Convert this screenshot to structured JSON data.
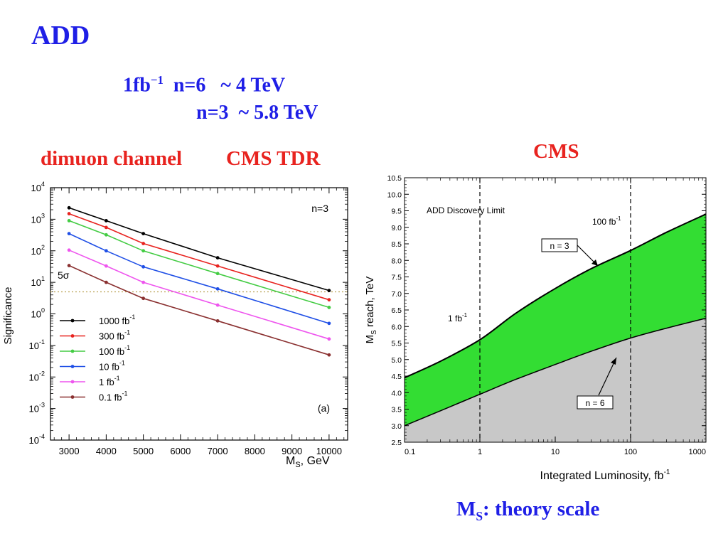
{
  "slide": {
    "title": "ADD",
    "summary_line1_a": "1fb",
    "summary_line1_sup": "−1",
    "summary_line1_b": "n=6   ~ 4 TeV",
    "summary_line2": "n=3  ~ 5.8 TeV",
    "left_caption_a": "dimuon channel",
    "left_caption_b": "CMS TDR",
    "right_caption": "CMS",
    "footer_a": "M",
    "footer_sub": "S",
    "footer_b": ": theory scale"
  },
  "colors": {
    "title_blue": "#1f1fe6",
    "caption_red": "#e8231f",
    "band_green": "#33dd33",
    "band_gray": "#c8c8c8"
  },
  "chart_data": [
    {
      "type": "line",
      "ylabel": "Significance",
      "xlabel_a": "M",
      "xlabel_sub": "S",
      "xlabel_b": ", GeV",
      "xlim": [
        2500,
        10500
      ],
      "ylim": [
        0.0001,
        10000
      ],
      "yscale": "log",
      "xticks": [
        3000,
        4000,
        5000,
        6000,
        7000,
        8000,
        9000,
        10000
      ],
      "yticks": [
        {
          "v": 0.0001,
          "m": "10",
          "e": "-4"
        },
        {
          "v": 0.001,
          "m": "10",
          "e": "-3"
        },
        {
          "v": 0.01,
          "m": "10",
          "e": "-2"
        },
        {
          "v": 0.1,
          "m": "10",
          "e": "-1"
        },
        {
          "v": 1,
          "m": "10",
          "e": "0"
        },
        {
          "v": 10,
          "m": "10",
          "e": "1"
        },
        {
          "v": 100,
          "m": "10",
          "e": "2"
        },
        {
          "v": 1000,
          "m": "10",
          "e": "3"
        },
        {
          "v": 10000,
          "m": "10",
          "e": "4"
        }
      ],
      "annotation_n": "n=3",
      "annotation_5sigma": "5σ",
      "threshold": 5,
      "panel_label": "(a)",
      "x": [
        3000,
        4000,
        5000,
        7000,
        10000
      ],
      "series": [
        {
          "name": "1000  fb",
          "sup": "-1",
          "color": "#000000",
          "values": [
            2300,
            900,
            350,
            60,
            5.5
          ]
        },
        {
          "name": "300  fb",
          "sup": "-1",
          "color": "#e8231f",
          "values": [
            1500,
            550,
            170,
            33,
            2.8
          ]
        },
        {
          "name": "100   fb",
          "sup": "-1",
          "color": "#44cc44",
          "values": [
            900,
            320,
            100,
            19,
            1.6
          ]
        },
        {
          "name": "10  fb",
          "sup": "-1",
          "color": "#1f4fe6",
          "values": [
            350,
            100,
            31,
            6.2,
            0.5
          ]
        },
        {
          "name": "1   fb",
          "sup": "-1",
          "color": "#ee55ee",
          "values": [
            105,
            33,
            10,
            1.9,
            0.16
          ]
        },
        {
          "name": "0.1 fb",
          "sup": "-1",
          "color": "#8a3030",
          "values": [
            34,
            10,
            3.1,
            0.6,
            0.05
          ]
        }
      ]
    },
    {
      "type": "area",
      "title": "ADD Discovery Limit",
      "ylabel_a": "M",
      "ylabel_sub": "S",
      "ylabel_b": " reach, TeV",
      "xlabel_a": "Integrated Luminosity, fb",
      "xlabel_sup": "-1",
      "xscale": "log",
      "xlim": [
        0.1,
        1000
      ],
      "ylim": [
        2.5,
        10.5
      ],
      "xticks": [
        {
          "v": 0.1,
          "label": "0.1"
        },
        {
          "v": 1,
          "label": "1"
        },
        {
          "v": 10,
          "label": "10"
        },
        {
          "v": 100,
          "label": "100"
        },
        {
          "v": 1000,
          "label": "1000"
        }
      ],
      "yticks": [
        "2.5",
        "3.0",
        "3.5",
        "4.0",
        "4.5",
        "5.0",
        "5.5",
        "6.0",
        "6.5",
        "7.0",
        "7.5",
        "8.0",
        "8.5",
        "9.0",
        "9.5",
        "10.0",
        "10.5"
      ],
      "vlines": [
        {
          "x": 1,
          "label_a": "1 fb",
          "label_sup": "-1"
        },
        {
          "x": 100,
          "label_a": "100 fb",
          "label_sup": "-1"
        }
      ],
      "series": [
        {
          "name": "n = 3",
          "x": [
            0.1,
            0.3,
            1,
            3,
            10,
            30,
            100,
            300,
            1000
          ],
          "values": [
            4.45,
            4.95,
            5.6,
            6.4,
            7.15,
            7.75,
            8.3,
            8.85,
            9.4
          ]
        },
        {
          "name": "n = 6",
          "x": [
            0.1,
            0.3,
            1,
            3,
            10,
            30,
            100,
            300,
            1000
          ],
          "values": [
            3.0,
            3.45,
            3.95,
            4.4,
            4.85,
            5.25,
            5.65,
            5.95,
            6.25
          ]
        }
      ]
    }
  ]
}
